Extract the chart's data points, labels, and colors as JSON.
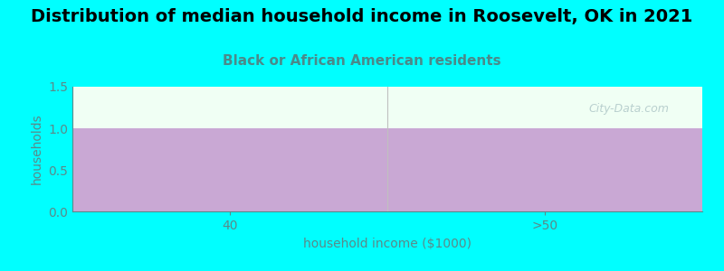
{
  "title": "Distribution of median household income in Roosevelt, OK in 2021",
  "subtitle": "Black or African American residents",
  "xlabel": "household income ($1000)",
  "ylabel": "households",
  "categories": [
    "40",
    ">50"
  ],
  "values": [
    1,
    1
  ],
  "bar_color": "#c9a8d4",
  "bar_edge_color": "#c9a8d4",
  "ylim": [
    0,
    1.5
  ],
  "yticks": [
    0,
    0.5,
    1,
    1.5
  ],
  "background_color": "#00ffff",
  "plot_bg_color": "#f0fff4",
  "title_fontsize": 14,
  "subtitle_fontsize": 11,
  "subtitle_color": "#4a8a8a",
  "title_color": "#000000",
  "axis_color": "#5a8a8a",
  "tick_color": "#5a8a8a",
  "ylabel_color": "#5a8a8a",
  "xlabel_color": "#5a8a8a",
  "watermark_color": "#b0c8c8",
  "separator_color": "#c0c0c0"
}
